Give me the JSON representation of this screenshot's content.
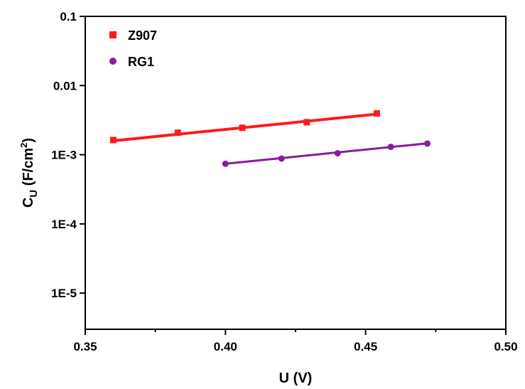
{
  "chart_data": {
    "type": "scatter",
    "xlabel": "U (V)",
    "ylabel_main": "C",
    "ylabel_sub": "U",
    "ylabel_unit": " (F/cm",
    "ylabel_sup": "2",
    "ylabel_close": ")",
    "xlim": [
      0.35,
      0.5
    ],
    "ylim": [
      3e-06,
      0.1
    ],
    "y_scale": "log",
    "xticks": [
      0.35,
      0.4,
      0.45,
      0.5
    ],
    "xtick_labels": [
      "0.35",
      "0.40",
      "0.45",
      "0.50"
    ],
    "yticks": [
      1e-05,
      0.0001,
      0.001,
      0.01,
      0.1
    ],
    "ytick_labels": [
      "1E-5",
      "1E-4",
      "1E-3",
      "0.01",
      "0.1"
    ],
    "grid": false,
    "legend_position": "top-left",
    "series": [
      {
        "name": "Z907",
        "marker": "square",
        "color": "#ff1a1a",
        "x": [
          0.36,
          0.383,
          0.406,
          0.429,
          0.454
        ],
        "y": [
          0.00163,
          0.00208,
          0.00245,
          0.00295,
          0.00395
        ],
        "fit_line": [
          [
            0.36,
            0.00159
          ],
          [
            0.455,
            0.0039
          ]
        ]
      },
      {
        "name": "RG1",
        "marker": "circle",
        "color": "#8b1a9e",
        "x": [
          0.4,
          0.42,
          0.44,
          0.459,
          0.472
        ],
        "y": [
          0.00074,
          0.00088,
          0.00105,
          0.0013,
          0.00145
        ],
        "fit_line": [
          [
            0.4,
            0.00074
          ],
          [
            0.472,
            0.00146
          ]
        ]
      }
    ]
  }
}
